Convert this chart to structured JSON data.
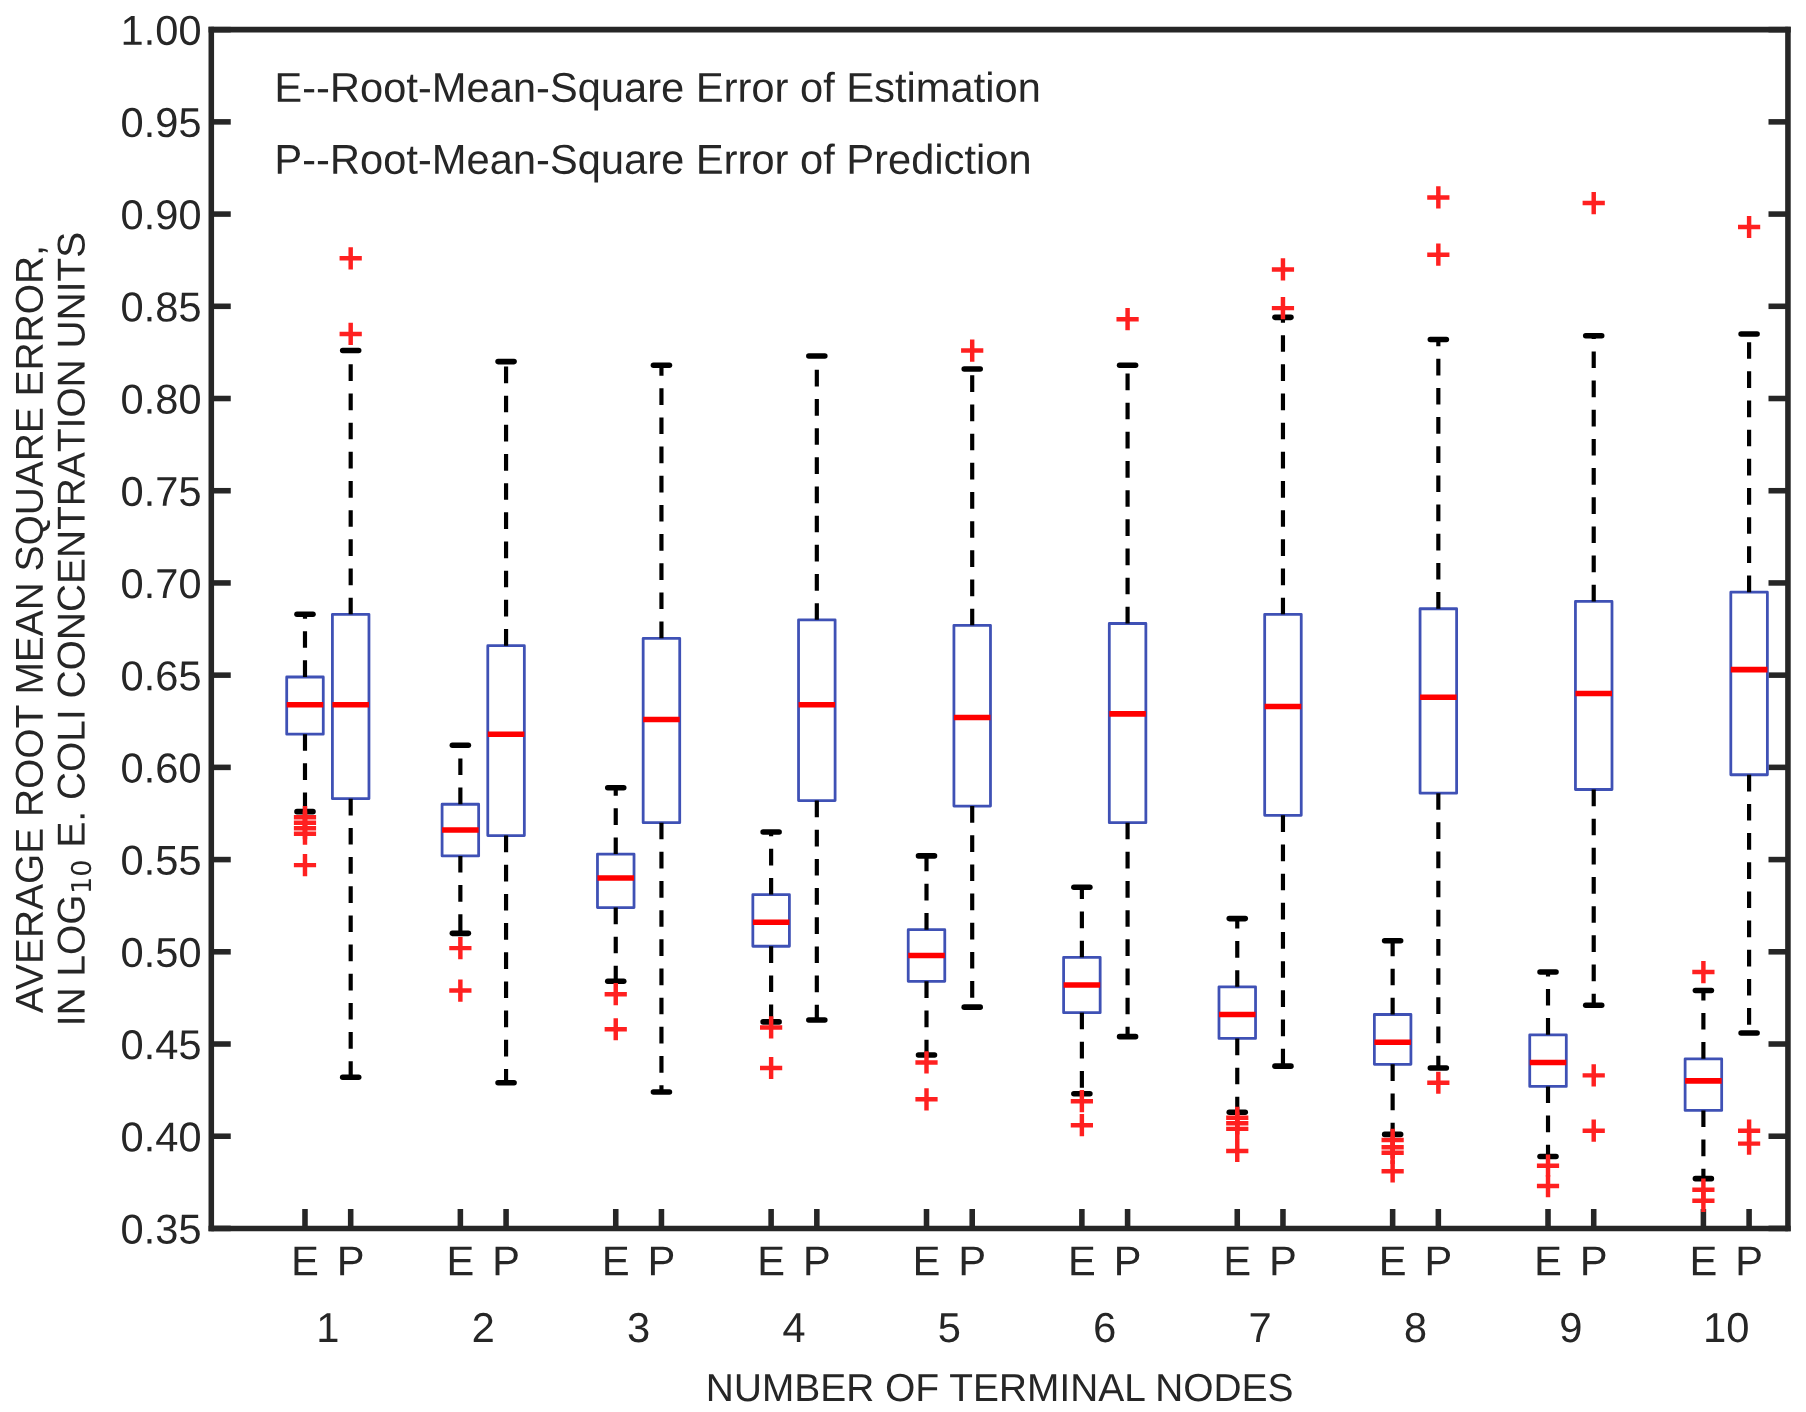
{
  "chart_data": {
    "type": "box",
    "xlabel": "NUMBER OF TERMINAL NODES",
    "ylabel": "AVERAGE ROOT MEAN SQUARE ERROR,\nIN LOG$_{10}$ E. COLI CONCENTRATION UNITS",
    "annotations": [
      "E--Root-Mean-Square Error of Estimation",
      "P--Root-Mean-Square Error of Prediction",
      "1",
      "2",
      "3",
      "4",
      "5",
      "6",
      "7",
      "8",
      "9",
      "10"
    ],
    "categories": [
      "E",
      "P",
      "E",
      "P",
      "E",
      "P",
      "E",
      "P",
      "E",
      "P",
      "E",
      "P",
      "E",
      "P",
      "E",
      "P",
      "E",
      "P",
      "E",
      "P"
    ],
    "ylim": [
      0.35,
      1.0
    ],
    "yticks": [
      {
        "value": 0.35,
        "label": "0.35"
      },
      {
        "value": 0.4,
        "label": "0.40"
      },
      {
        "value": 0.45,
        "label": "0.45"
      },
      {
        "value": 0.5,
        "label": "0.50"
      },
      {
        "value": 0.55,
        "label": "0.55"
      },
      {
        "value": 0.6,
        "label": "0.60"
      },
      {
        "value": 0.65,
        "label": "0.65"
      },
      {
        "value": 0.7,
        "label": "0.70"
      },
      {
        "value": 0.75,
        "label": "0.75"
      },
      {
        "value": 0.8,
        "label": "0.80"
      },
      {
        "value": 0.85,
        "label": "0.85"
      },
      {
        "value": 0.9,
        "label": "0.90"
      },
      {
        "value": 0.95,
        "label": "0.95"
      },
      {
        "value": 1.0,
        "label": "1.00"
      }
    ],
    "series": [
      {
        "color": "#3f51b5",
        "boxes": [
          {
            "low": 0.576,
            "q1": 0.618,
            "median": 0.634,
            "q3": 0.649,
            "high": 0.683,
            "outliers": [
              0.573,
              0.57,
              0.567,
              0.564,
              0.547
            ]
          },
          {
            "low": 0.432,
            "q1": 0.583,
            "median": 0.634,
            "q3": 0.683,
            "high": 0.826,
            "outliers": [
              0.876,
              0.835
            ]
          },
          {
            "low": 0.51,
            "q1": 0.552,
            "median": 0.566,
            "q3": 0.58,
            "high": 0.612,
            "outliers": [
              0.502,
              0.479
            ]
          },
          {
            "low": 0.429,
            "q1": 0.563,
            "median": 0.618,
            "q3": 0.666,
            "high": 0.82
          },
          {
            "low": 0.484,
            "q1": 0.524,
            "median": 0.54,
            "q3": 0.553,
            "high": 0.589,
            "outliers": [
              0.477,
              0.458
            ]
          },
          {
            "low": 0.424,
            "q1": 0.57,
            "median": 0.626,
            "q3": 0.67,
            "high": 0.818
          },
          {
            "low": 0.462,
            "q1": 0.503,
            "median": 0.516,
            "q3": 0.531,
            "high": 0.565,
            "outliers": [
              0.459,
              0.437
            ]
          },
          {
            "low": 0.463,
            "q1": 0.582,
            "median": 0.634,
            "q3": 0.68,
            "high": 0.823
          },
          {
            "low": 0.444,
            "q1": 0.484,
            "median": 0.498,
            "q3": 0.512,
            "high": 0.552,
            "outliers": [
              0.44,
              0.42
            ]
          },
          {
            "low": 0.47,
            "q1": 0.579,
            "median": 0.627,
            "q3": 0.677,
            "high": 0.816,
            "outliers": [
              0.826
            ]
          },
          {
            "low": 0.423,
            "q1": 0.467,
            "median": 0.482,
            "q3": 0.497,
            "high": 0.535,
            "outliers": [
              0.419,
              0.406
            ]
          },
          {
            "low": 0.454,
            "q1": 0.57,
            "median": 0.629,
            "q3": 0.678,
            "high": 0.818,
            "outliers": [
              0.843
            ]
          },
          {
            "low": 0.413,
            "q1": 0.453,
            "median": 0.466,
            "q3": 0.481,
            "high": 0.518,
            "outliers": [
              0.41,
              0.407,
              0.404,
              0.392
            ]
          },
          {
            "low": 0.438,
            "q1": 0.574,
            "median": 0.633,
            "q3": 0.683,
            "high": 0.844,
            "outliers": [
              0.87,
              0.849
            ]
          },
          {
            "low": 0.401,
            "q1": 0.439,
            "median": 0.451,
            "q3": 0.466,
            "high": 0.506,
            "outliers": [
              0.398,
              0.394,
              0.391,
              0.381
            ]
          },
          {
            "low": 0.437,
            "q1": 0.586,
            "median": 0.638,
            "q3": 0.686,
            "high": 0.832,
            "outliers": [
              0.909,
              0.878,
              0.429
            ]
          },
          {
            "low": 0.389,
            "q1": 0.427,
            "median": 0.44,
            "q3": 0.455,
            "high": 0.489,
            "outliers": [
              0.384,
              0.373
            ]
          },
          {
            "low": 0.471,
            "q1": 0.588,
            "median": 0.64,
            "q3": 0.69,
            "high": 0.834,
            "outliers": [
              0.906,
              0.433,
              0.403
            ]
          },
          {
            "low": 0.377,
            "q1": 0.414,
            "median": 0.43,
            "q3": 0.442,
            "high": 0.479,
            "outliers": [
              0.489,
              0.371,
              0.365
            ]
          },
          {
            "low": 0.456,
            "q1": 0.596,
            "median": 0.653,
            "q3": 0.695,
            "high": 0.835,
            "outliers": [
              0.893,
              0.403,
              0.396
            ]
          }
        ]
      }
    ]
  }
}
